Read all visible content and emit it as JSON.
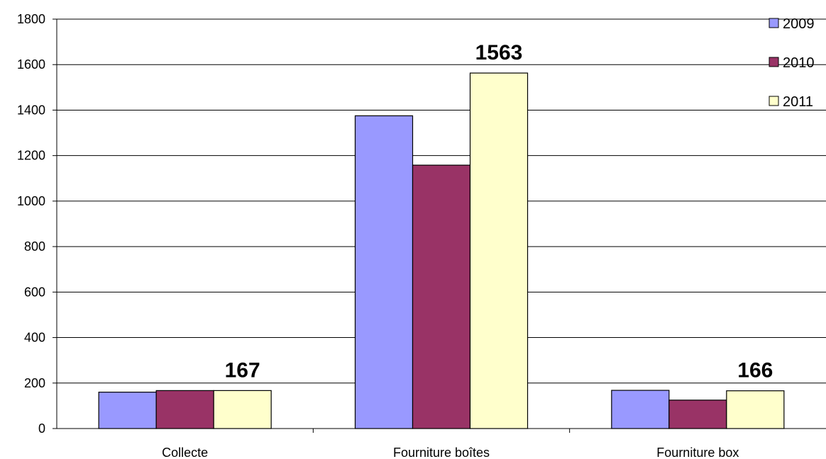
{
  "chart_data": {
    "type": "bar",
    "categories": [
      "Collecte",
      "Fourniture boîtes",
      "Fourniture box"
    ],
    "series": [
      {
        "name": "2009",
        "values": [
          160,
          1375,
          168
        ],
        "color": "#9999ff"
      },
      {
        "name": "2010",
        "values": [
          167,
          1158,
          125
        ],
        "color": "#993366"
      },
      {
        "name": "2011",
        "values": [
          167,
          1563,
          166
        ],
        "color": "#ffffcc"
      }
    ],
    "data_labels": [
      {
        "series": "2011",
        "category": "Collecte",
        "text": "167"
      },
      {
        "series": "2011",
        "category": "Fourniture boîtes",
        "text": "1563"
      },
      {
        "series": "2011",
        "category": "Fourniture box",
        "text": "166"
      }
    ],
    "yticks": [
      "0",
      "200",
      "400",
      "600",
      "800",
      "1000",
      "1200",
      "1400",
      "1600",
      "1800"
    ],
    "ylim": [
      0,
      1800
    ],
    "grid": true,
    "legend_position": "top-right"
  }
}
